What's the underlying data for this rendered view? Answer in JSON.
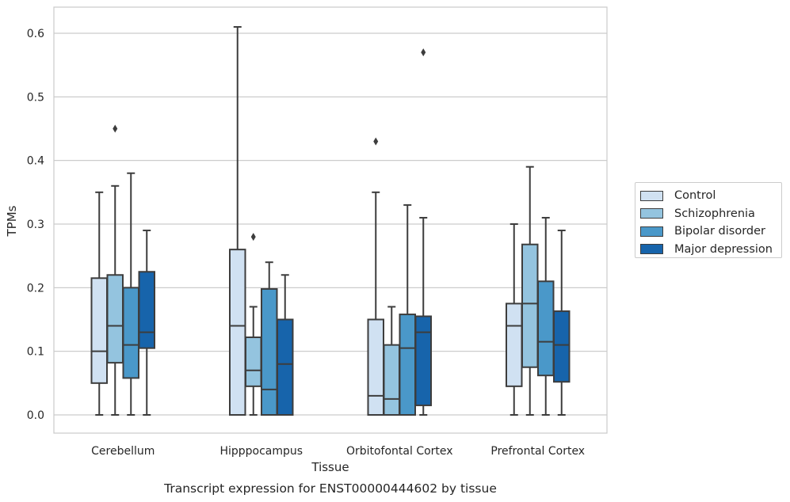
{
  "chart_data": {
    "type": "box",
    "title": "Transcript expression for ENST00000444602 by tissue",
    "xlabel": "Tissue",
    "ylabel": "TPMs",
    "ylim": [
      -0.03,
      0.64
    ],
    "yticks": [
      "0.0",
      "0.1",
      "0.2",
      "0.3",
      "0.4",
      "0.5",
      "0.6"
    ],
    "grid": true,
    "legend_position": "right",
    "categories": [
      "Cerebellum",
      "Hipppocampus",
      "Orbitofontal Cortex",
      "Prefrontal Cortex"
    ],
    "series": [
      {
        "name": "Control",
        "color": "#d0e1f2",
        "boxes": [
          {
            "min": 0,
            "q1": 0.05,
            "median": 0.1,
            "q3": 0.215,
            "max": 0.35,
            "outliers": []
          },
          {
            "min": 0,
            "q1": 0,
            "median": 0.14,
            "q3": 0.26,
            "max": 0.61,
            "outliers": []
          },
          {
            "min": 0,
            "q1": 0,
            "median": 0.03,
            "q3": 0.15,
            "max": 0.35,
            "outliers": [
              0.43
            ]
          },
          {
            "min": 0,
            "q1": 0.045,
            "median": 0.14,
            "q3": 0.175,
            "max": 0.3,
            "outliers": []
          }
        ]
      },
      {
        "name": "Schizophrenia",
        "color": "#94c4df",
        "boxes": [
          {
            "min": 0,
            "q1": 0.082,
            "median": 0.14,
            "q3": 0.22,
            "max": 0.36,
            "outliers": [
              0.45
            ]
          },
          {
            "min": 0,
            "q1": 0.045,
            "median": 0.07,
            "q3": 0.122,
            "max": 0.17,
            "outliers": [
              0.28
            ]
          },
          {
            "min": 0,
            "q1": 0,
            "median": 0.025,
            "q3": 0.11,
            "max": 0.17,
            "outliers": []
          },
          {
            "min": 0,
            "q1": 0.075,
            "median": 0.175,
            "q3": 0.268,
            "max": 0.39,
            "outliers": []
          }
        ]
      },
      {
        "name": "Bipolar disorder",
        "color": "#4a98c9",
        "boxes": [
          {
            "min": 0,
            "q1": 0.058,
            "median": 0.11,
            "q3": 0.2,
            "max": 0.38,
            "outliers": []
          },
          {
            "min": 0,
            "q1": 0,
            "median": 0.04,
            "q3": 0.198,
            "max": 0.24,
            "outliers": []
          },
          {
            "min": 0,
            "q1": 0,
            "median": 0.105,
            "q3": 0.158,
            "max": 0.33,
            "outliers": []
          },
          {
            "min": 0,
            "q1": 0.062,
            "median": 0.115,
            "q3": 0.21,
            "max": 0.31,
            "outliers": []
          }
        ]
      },
      {
        "name": "Major depression",
        "color": "#1764ab",
        "boxes": [
          {
            "min": 0,
            "q1": 0.105,
            "median": 0.13,
            "q3": 0.225,
            "max": 0.29,
            "outliers": []
          },
          {
            "min": 0,
            "q1": 0,
            "median": 0.08,
            "q3": 0.15,
            "max": 0.22,
            "outliers": []
          },
          {
            "min": 0,
            "q1": 0.015,
            "median": 0.13,
            "q3": 0.155,
            "max": 0.31,
            "outliers": [
              0.57
            ]
          },
          {
            "min": 0,
            "q1": 0.052,
            "median": 0.11,
            "q3": 0.163,
            "max": 0.29,
            "outliers": []
          }
        ]
      }
    ]
  }
}
